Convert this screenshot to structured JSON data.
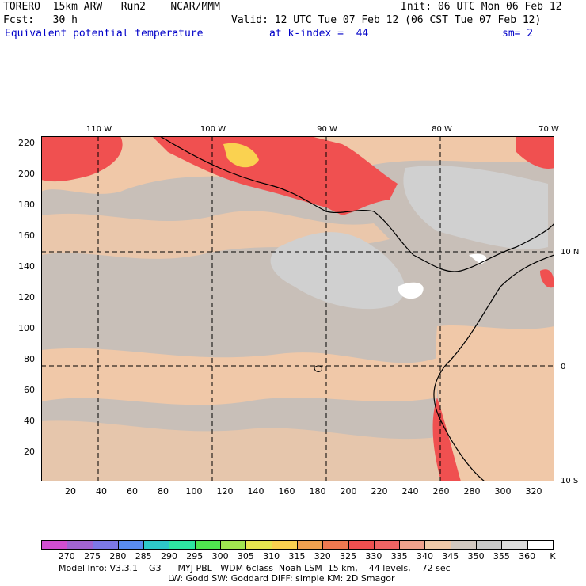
{
  "header": {
    "line1_left": "TORERO  15km ARW   Run2    NCAR/MMM",
    "line1_right": "Init: 06 UTC Mon 06 Feb 12",
    "line2_left": "Fcst:   30 h",
    "line2_right": "Valid: 12 UTC Tue 07 Feb 12 (06 CST Tue 07 Feb 12)",
    "field": "Equivalent potential temperature",
    "level": "at k-index =  44",
    "smooth": "sm= 2"
  },
  "map": {
    "y_ticks": [
      "220",
      "200",
      "180",
      "160",
      "140",
      "120",
      "100",
      "80",
      "60",
      "40",
      "20"
    ],
    "x_ticks": [
      "20",
      "40",
      "60",
      "80",
      "100",
      "120",
      "140",
      "160",
      "180",
      "200",
      "220",
      "240",
      "260",
      "280",
      "300",
      "320"
    ],
    "lon_labels": [
      "110 W",
      "100 W",
      "90 W",
      "80 W",
      "70 W"
    ],
    "lat_labels": [
      "10 N",
      "0",
      "10 S"
    ]
  },
  "colorbar": {
    "labels": [
      "270",
      "275",
      "280",
      "285",
      "290",
      "295",
      "300",
      "305",
      "310",
      "315",
      "320",
      "325",
      "330",
      "335",
      "340",
      "345",
      "350",
      "355",
      "360",
      "K"
    ],
    "colors": [
      "#d24ed2",
      "#a064d2",
      "#7c78e6",
      "#5a8cf0",
      "#2ec8c8",
      "#2ee6a0",
      "#50e650",
      "#a0e650",
      "#e6e650",
      "#fad250",
      "#f0a050",
      "#f07850",
      "#f05050",
      "#f06464",
      "#f0a08c",
      "#f0c8a8",
      "#d2c8c0",
      "#c8c8c8",
      "#dcdcdc",
      "#ffffff"
    ]
  },
  "footer": {
    "line1": "Model Info: V3.3.1    G3      MYJ PBL   WDM 6class  Noah LSM  15 km,    44 levels,    72 sec",
    "line2": "LW: Godd SW: Goddard DIFF: simple KM: 2D Smagor"
  }
}
